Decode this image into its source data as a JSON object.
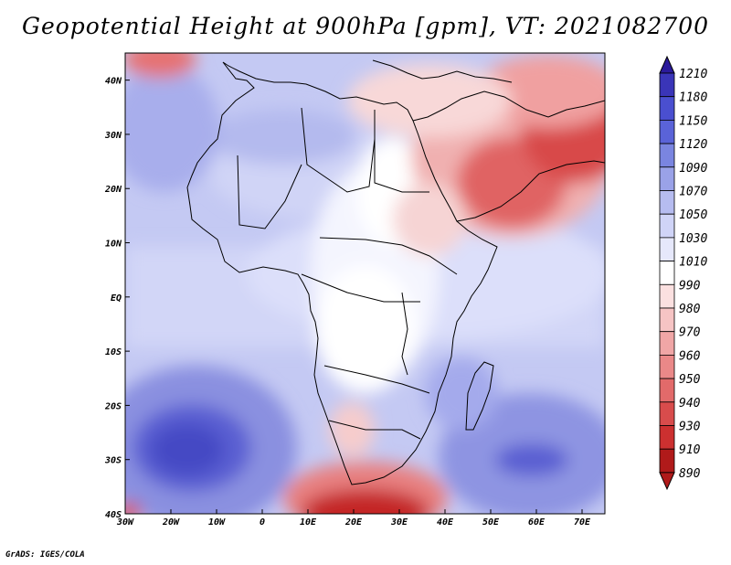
{
  "title": "Geopotential Height at 900hPa [gpm], VT: 2021082700",
  "credit": "GrADS: IGES/COLA",
  "map": {
    "lon_ticks": [
      "30W",
      "20W",
      "10W",
      "0",
      "10E",
      "20E",
      "30E",
      "40E",
      "50E",
      "60E",
      "70E"
    ],
    "lat_ticks": [
      "40N",
      "30N",
      "20N",
      "10N",
      "EQ",
      "10S",
      "20S",
      "30S",
      "40S"
    ],
    "lon_range": [
      -30,
      75
    ],
    "lat_range": [
      -40,
      45
    ]
  },
  "colorbar": {
    "levels": [
      "1210",
      "1180",
      "1150",
      "1120",
      "1090",
      "1070",
      "1050",
      "1030",
      "1010",
      "990",
      "980",
      "970",
      "960",
      "950",
      "940",
      "930",
      "910",
      "890"
    ],
    "colors": [
      "#2b1a9b",
      "#3a35b8",
      "#4a4fd0",
      "#5a63d8",
      "#7a85e0",
      "#9aa2e8",
      "#b6bcf0",
      "#d0d4f7",
      "#e6e8fb",
      "#ffffff",
      "#fbe0e0",
      "#f6c4c4",
      "#f0a6a6",
      "#ea8888",
      "#e26a6a",
      "#d84c4c",
      "#cc3030",
      "#b01a1a"
    ]
  }
}
